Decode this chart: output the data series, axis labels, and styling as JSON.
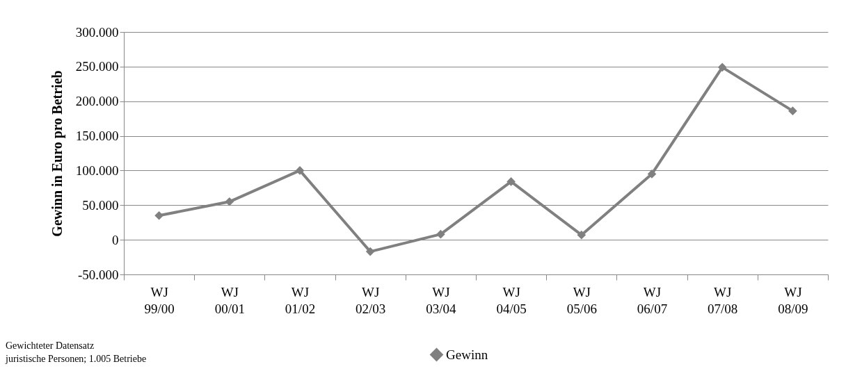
{
  "chart_data": {
    "type": "line",
    "ylabel": "Gewinn in Euro pro Betrieb",
    "categories": [
      "WJ 99/00",
      "WJ 00/01",
      "WJ 01/02",
      "WJ 02/03",
      "WJ 03/04",
      "WJ 04/05",
      "WJ 05/06",
      "WJ 06/07",
      "WJ 07/08",
      "WJ 08/09"
    ],
    "series": [
      {
        "name": "Gewinn",
        "color": "#808080",
        "values": [
          35000,
          55000,
          100000,
          -17000,
          8000,
          84000,
          7000,
          95000,
          249000,
          186000
        ]
      }
    ],
    "ylim": [
      -50000,
      300000
    ],
    "yticks": [
      {
        "value": -50000,
        "label": "-50.000"
      },
      {
        "value": 0,
        "label": "0"
      },
      {
        "value": 50000,
        "label": "50.000"
      },
      {
        "value": 100000,
        "label": "100.000"
      },
      {
        "value": 150000,
        "label": "150.000"
      },
      {
        "value": 200000,
        "label": "200.000"
      },
      {
        "value": 250000,
        "label": "250.000"
      },
      {
        "value": 300000,
        "label": "300.000"
      }
    ],
    "grid": "y",
    "legend": "bottom",
    "marker": "diamond",
    "line_style": "solid",
    "annotations": [
      "Gewichteter Datensatz",
      "juristische Personen; 1.005 Betriebe"
    ]
  }
}
